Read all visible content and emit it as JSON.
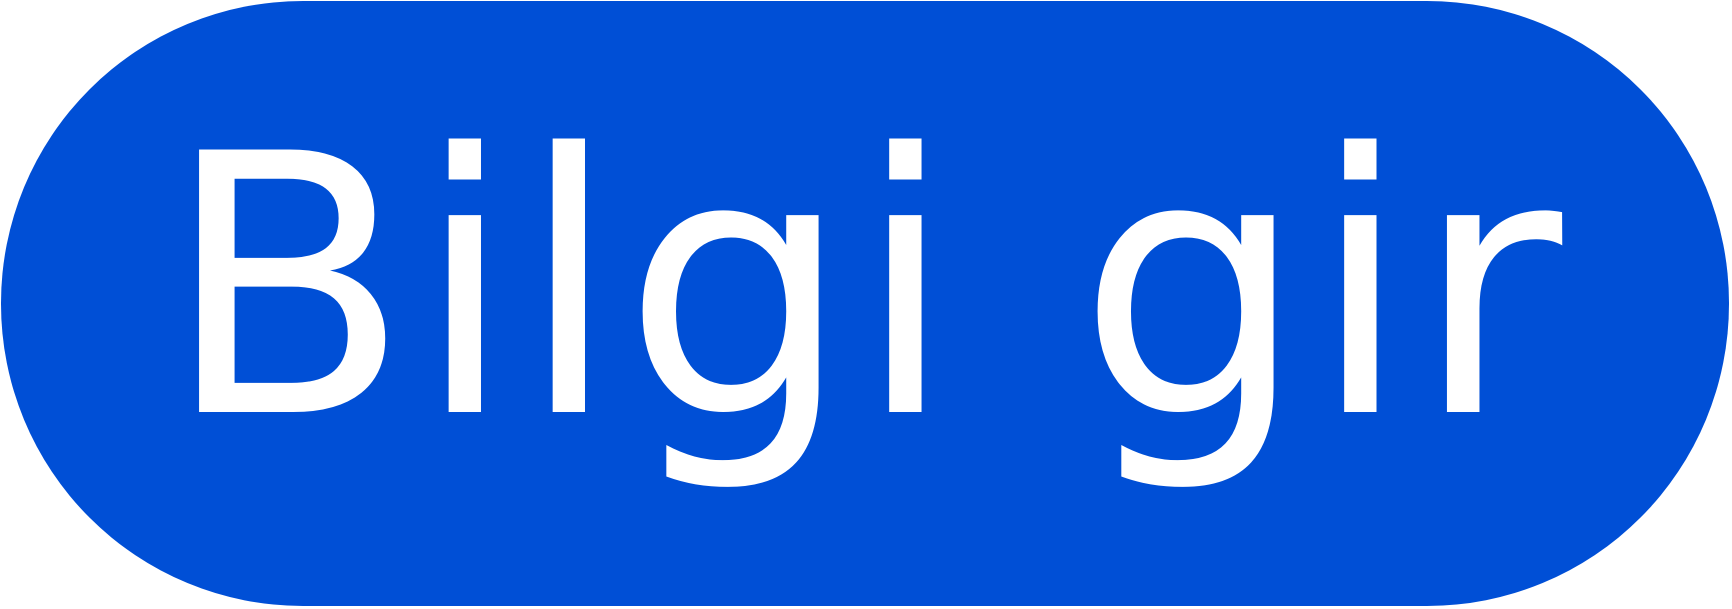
{
  "button": {
    "label": "Bilgi gir"
  },
  "colors": {
    "background": "#004fd6",
    "text": "#ffffff"
  }
}
